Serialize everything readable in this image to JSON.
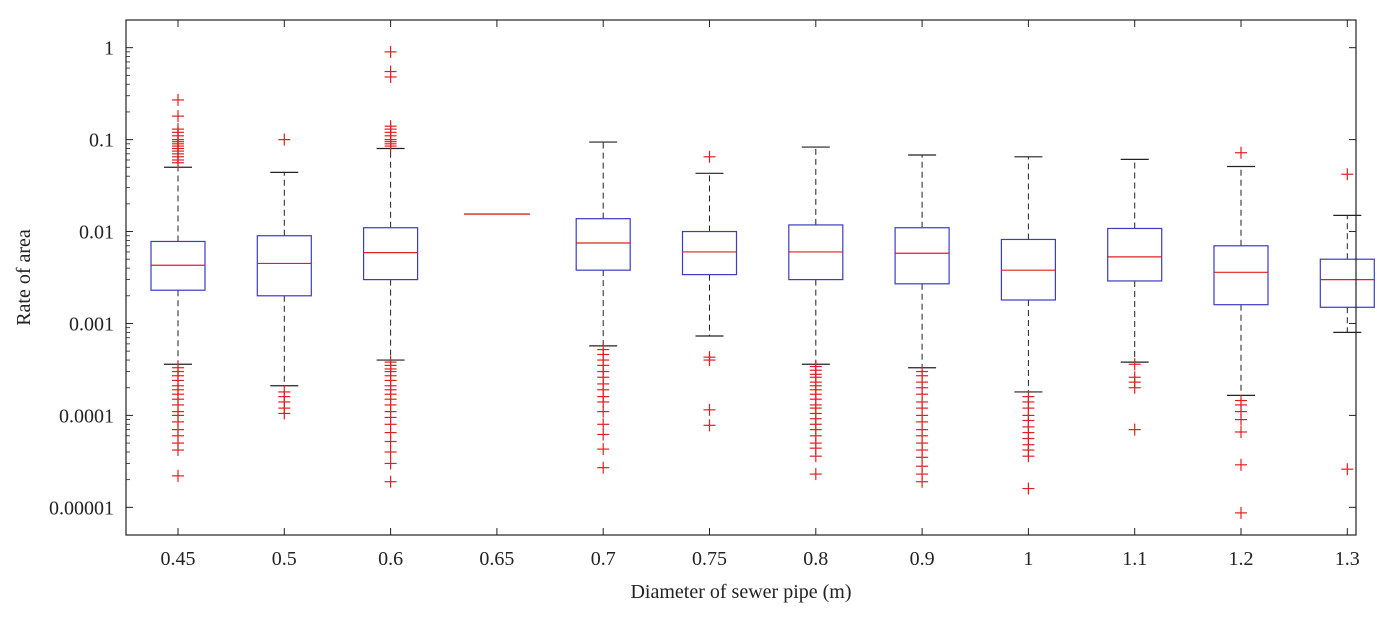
{
  "chart_data": {
    "type": "boxplot",
    "title": "",
    "xlabel": "Diameter of sewer pipe (m)",
    "ylabel": "Rate of area",
    "yscale": "log",
    "ylim": [
      5e-06,
      2
    ],
    "yticks": [
      {
        "value": 1,
        "label": "1"
      },
      {
        "value": 0.1,
        "label": "0.1"
      },
      {
        "value": 0.01,
        "label": "0.01"
      },
      {
        "value": 0.001,
        "label": "0.001"
      },
      {
        "value": 0.0001,
        "label": "0.0001"
      },
      {
        "value": 1e-05,
        "label": "0.00001"
      }
    ],
    "categories": [
      "0.45",
      "0.5",
      "0.6",
      "0.65",
      "0.7",
      "0.75",
      "0.8",
      "0.9",
      "1",
      "1.1",
      "1.2",
      "1.3"
    ],
    "colors": {
      "box": "#3b3bc4",
      "median": "#e02020",
      "whisker": "#222222",
      "outlier": "#e02020",
      "frame": "#222222"
    },
    "boxes": [
      {
        "label": "0.45",
        "whisker_low": 0.00036,
        "q1": 0.0023,
        "median": 0.0043,
        "q3": 0.0078,
        "whisker_high": 0.05,
        "outliers": [
          0.27,
          0.18,
          0.13,
          0.12,
          0.11,
          0.1,
          0.095,
          0.09,
          0.085,
          0.08,
          0.075,
          0.07,
          0.065,
          0.06,
          0.056,
          0.00033,
          0.0003,
          0.00027,
          0.00024,
          0.00021,
          0.00019,
          0.00017,
          0.00015,
          0.00013,
          0.00011,
          0.0001,
          8.5e-05,
          7e-05,
          6e-05,
          5e-05,
          4.2e-05,
          2.2e-05
        ]
      },
      {
        "label": "0.5",
        "whisker_low": 0.00021,
        "q1": 0.002,
        "median": 0.0045,
        "q3": 0.009,
        "whisker_high": 0.044,
        "outliers": [
          0.1,
          0.00018,
          0.00016,
          0.00014,
          0.00012,
          0.000105
        ]
      },
      {
        "label": "0.6",
        "whisker_low": 0.0004,
        "q1": 0.003,
        "median": 0.0059,
        "q3": 0.011,
        "whisker_high": 0.08,
        "outliers": [
          0.9,
          0.55,
          0.48,
          0.14,
          0.13,
          0.12,
          0.11,
          0.1,
          0.095,
          0.09,
          0.085,
          0.00038,
          0.00035,
          0.00032,
          0.0003,
          0.00027,
          0.00024,
          0.00021,
          0.00019,
          0.00017,
          0.00015,
          0.00013,
          0.00011,
          9.5e-05,
          8e-05,
          6.5e-05,
          5.2e-05,
          4e-05,
          3e-05,
          1.9e-05
        ]
      },
      {
        "label": "0.65",
        "whisker_low": 0.0155,
        "q1": 0.0155,
        "median": 0.0155,
        "q3": 0.0155,
        "whisker_high": 0.0155,
        "outliers": []
      },
      {
        "label": "0.7",
        "whisker_low": 0.00057,
        "q1": 0.0038,
        "median": 0.0075,
        "q3": 0.0138,
        "whisker_high": 0.094,
        "outliers": [
          0.00052,
          0.00046,
          0.0004,
          0.00035,
          0.0003,
          0.00026,
          0.00022,
          0.00019,
          0.00016,
          0.00014,
          0.00011,
          8e-05,
          6.2e-05,
          4.3e-05,
          2.7e-05
        ]
      },
      {
        "label": "0.75",
        "whisker_low": 0.00073,
        "q1": 0.0034,
        "median": 0.006,
        "q3": 0.01,
        "whisker_high": 0.043,
        "outliers": [
          0.065,
          0.00043,
          0.0004,
          0.000115,
          7.8e-05
        ]
      },
      {
        "label": "0.8",
        "whisker_low": 0.00036,
        "q1": 0.003,
        "median": 0.006,
        "q3": 0.0118,
        "whisker_high": 0.083,
        "outliers": [
          0.00034,
          0.00031,
          0.00028,
          0.00026,
          0.00023,
          0.00021,
          0.00019,
          0.00017,
          0.00015,
          0.00013,
          0.00012,
          0.000105,
          9.2e-05,
          8e-05,
          7e-05,
          6e-05,
          5e-05,
          4.4e-05,
          3.6e-05,
          2.3e-05
        ]
      },
      {
        "label": "0.9",
        "whisker_low": 0.00033,
        "q1": 0.0027,
        "median": 0.0058,
        "q3": 0.011,
        "whisker_high": 0.068,
        "outliers": [
          0.0003,
          0.00027,
          0.00023,
          0.0002,
          0.00017,
          0.00014,
          0.00012,
          0.0001,
          8.5e-05,
          7e-05,
          6e-05,
          5e-05,
          4.2e-05,
          3.5e-05,
          2.8e-05,
          2.3e-05,
          1.9e-05
        ]
      },
      {
        "label": "1",
        "whisker_low": 0.00018,
        "q1": 0.0018,
        "median": 0.0038,
        "q3": 0.0082,
        "whisker_high": 0.065,
        "outliers": [
          0.00016,
          0.00014,
          0.00012,
          0.0001,
          8.8e-05,
          7.5e-05,
          6.5e-05,
          5.6e-05,
          4.8e-05,
          4.2e-05,
          3.6e-05,
          1.6e-05
        ]
      },
      {
        "label": "1.1",
        "whisker_low": 0.00038,
        "q1": 0.0029,
        "median": 0.0053,
        "q3": 0.0108,
        "whisker_high": 0.061,
        "outliers": [
          0.00036,
          0.00026,
          0.00023,
          0.0002,
          7e-05
        ]
      },
      {
        "label": "1.2",
        "whisker_low": 0.000165,
        "q1": 0.0016,
        "median": 0.0036,
        "q3": 0.007,
        "whisker_high": 0.051,
        "outliers": [
          0.072,
          0.000145,
          0.00013,
          0.00011,
          9e-05,
          6.6e-05,
          2.9e-05,
          8.7e-06
        ]
      },
      {
        "label": "1.3",
        "whisker_low": 0.0008,
        "q1": 0.0015,
        "median": 0.003,
        "q3": 0.005,
        "whisker_high": 0.015,
        "outliers": [
          0.042,
          2.6e-05
        ]
      }
    ]
  }
}
